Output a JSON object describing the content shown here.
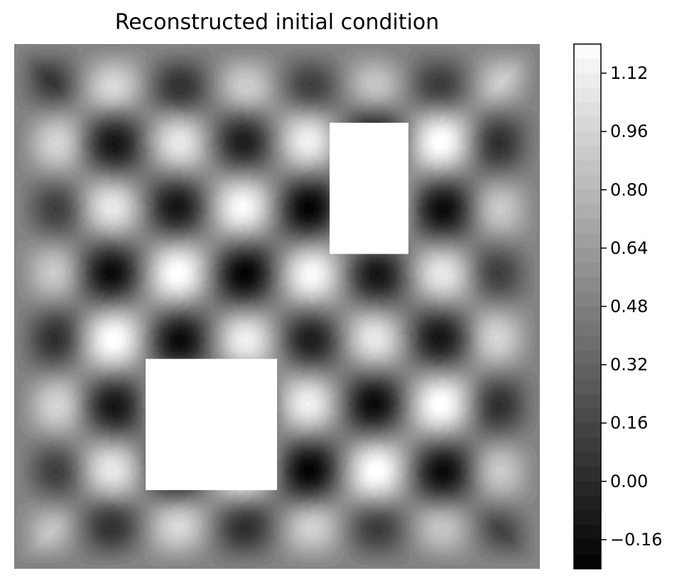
{
  "chart_data": {
    "type": "heatmap",
    "title": "Reconstructed initial condition",
    "xlabel": "",
    "ylabel": "",
    "axes_visible": false,
    "colormap": "gray",
    "colorbar": {
      "vmin": -0.24,
      "vmax": 1.2,
      "ticks": [
        -0.16,
        0.0,
        0.16,
        0.32,
        0.48,
        0.64,
        0.8,
        0.96,
        1.12
      ],
      "tick_labels": [
        "−0.16",
        "0.00",
        "0.16",
        "0.32",
        "0.48",
        "0.64",
        "0.80",
        "0.96",
        "1.12"
      ],
      "levels": 36
    },
    "field": {
      "description_of_pattern": "checkerboard of 8x8 cells with damped edges",
      "cells_x": 8,
      "cells_y": 8,
      "center_value": 0.5,
      "amplitude": 0.65
    },
    "masked_regions": [
      {
        "name": "upper-right-hole",
        "x_range": [
          0.6,
          0.75
        ],
        "y_range": [
          0.6,
          0.85
        ]
      },
      {
        "name": "lower-left-hole",
        "x_range": [
          0.25,
          0.5
        ],
        "y_range": [
          0.15,
          0.4
        ]
      }
    ]
  }
}
